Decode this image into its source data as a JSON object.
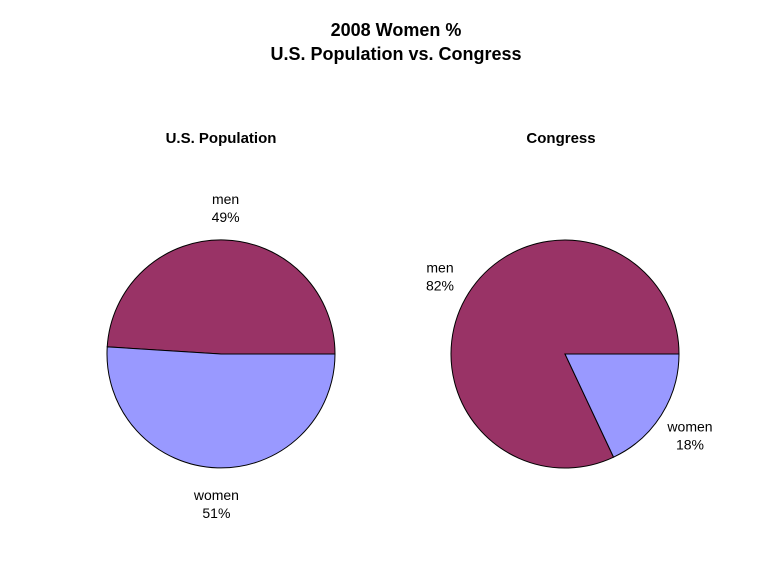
{
  "chart_data": {
    "title_line1": "2008 Women %",
    "title_line2": "U.S. Population vs. Congress",
    "type": "pie",
    "charts": [
      {
        "title": "U.S. Population",
        "slices": [
          {
            "label": "men",
            "percent_label": "49%",
            "value": 49,
            "color": "#993366"
          },
          {
            "label": "women",
            "percent_label": "51%",
            "value": 51,
            "color": "#9999ff"
          }
        ]
      },
      {
        "title": "Congress",
        "slices": [
          {
            "label": "men",
            "percent_label": "82%",
            "value": 82,
            "color": "#993366"
          },
          {
            "label": "women",
            "percent_label": "18%",
            "value": 18,
            "color": "#9999ff"
          }
        ]
      }
    ]
  }
}
